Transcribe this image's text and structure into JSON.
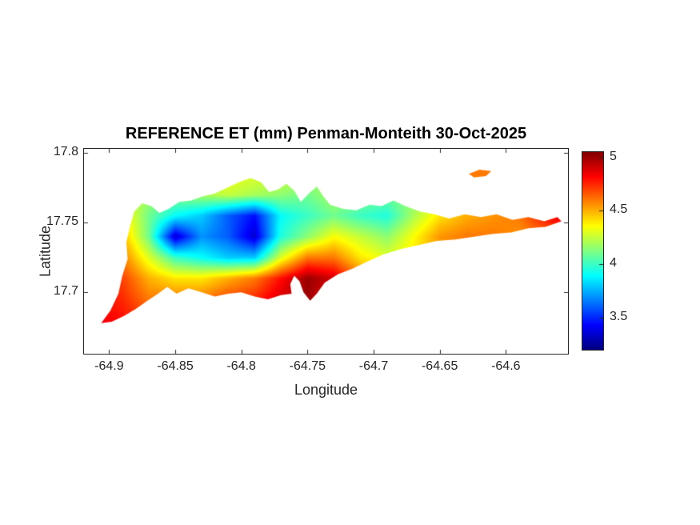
{
  "figure": {
    "background": "#ffffff"
  },
  "chart_data": {
    "type": "heatmap",
    "title": "REFERENCE ET (mm) Penman-Monteith 30-Oct-2025",
    "variable": "REFERENCE ET (mm)",
    "method": "Penman-Monteith",
    "date": "30-Oct-2025",
    "xlabel": "Longitude",
    "ylabel": "Latitude",
    "xlim": [
      -64.919,
      -64.553
    ],
    "ylim": [
      17.656,
      17.803
    ],
    "x_ticks": [
      -64.9,
      -64.85,
      -64.8,
      -64.75,
      -64.7,
      -64.65,
      -64.6
    ],
    "x_tick_labels": [
      "-64.9",
      "-64.85",
      "-64.8",
      "-64.75",
      "-64.7",
      "-64.65",
      "-64.6"
    ],
    "y_ticks": [
      17.7,
      17.75,
      17.8
    ],
    "y_tick_labels": [
      "17.7",
      "17.75",
      "17.8"
    ],
    "grid_on": false,
    "legend": "colorbar-right",
    "colormap": "jet",
    "clim": [
      3.2,
      5.05
    ],
    "colorbar_ticks": [
      3.5,
      4,
      4.5,
      5
    ],
    "colorbar_tick_labels": [
      "3.5",
      "4",
      "4.5",
      "5"
    ],
    "grid": {
      "lon": [
        -64.91,
        -64.89,
        -64.87,
        -64.85,
        -64.83,
        -64.81,
        -64.79,
        -64.77,
        -64.75,
        -64.73,
        -64.71,
        -64.69,
        -64.67,
        -64.65,
        -64.63,
        -64.61,
        -64.59,
        -64.57,
        -64.55
      ],
      "lat_north_to_south": [
        17.785,
        17.77,
        17.755,
        17.74,
        17.725,
        17.71,
        17.695,
        17.68
      ],
      "et_mm": [
        [
          4.3,
          4.2,
          4.2,
          4.3,
          4.3,
          4.35,
          4.3,
          4.3,
          4.2,
          4.2,
          4.2,
          4.1,
          4.2,
          4.3,
          4.6,
          4.6,
          4.5,
          4.6,
          4.7
        ],
        [
          4.3,
          4.25,
          4.2,
          4.15,
          4.2,
          4.25,
          4.2,
          4.15,
          4.1,
          4.2,
          4.15,
          4.1,
          4.15,
          4.3,
          4.5,
          4.55,
          4.6,
          4.7,
          4.8
        ],
        [
          4.5,
          4.4,
          4.1,
          3.9,
          3.8,
          3.6,
          3.45,
          3.9,
          4.0,
          4.1,
          4.0,
          3.95,
          4.2,
          4.4,
          4.5,
          4.55,
          4.6,
          4.8,
          4.9
        ],
        [
          4.6,
          4.5,
          4.1,
          3.35,
          3.7,
          3.6,
          3.35,
          3.95,
          4.15,
          4.35,
          4.25,
          4.15,
          4.35,
          4.55,
          4.6,
          4.6,
          4.55,
          4.6,
          4.7
        ],
        [
          4.7,
          4.6,
          4.3,
          4.0,
          3.9,
          3.8,
          3.8,
          4.3,
          4.6,
          4.6,
          4.4,
          4.3,
          4.4,
          4.5,
          4.5,
          4.5,
          4.5,
          4.5,
          4.6
        ],
        [
          4.8,
          4.7,
          4.5,
          4.4,
          4.4,
          4.5,
          4.6,
          4.8,
          5.0,
          4.9,
          4.6,
          4.5,
          4.5,
          4.5,
          4.5,
          4.5,
          4.5,
          4.5,
          4.5
        ],
        [
          4.8,
          4.75,
          4.6,
          4.6,
          4.6,
          4.7,
          4.75,
          4.9,
          5.0,
          4.8,
          4.6,
          4.5,
          4.45,
          4.45,
          4.45,
          4.45,
          4.4,
          4.4,
          4.4
        ],
        [
          4.85,
          4.8,
          4.7,
          4.65,
          4.65,
          4.7,
          4.75,
          4.85,
          4.9,
          4.7,
          4.6,
          4.5,
          4.45,
          4.4,
          4.4,
          4.4,
          4.4,
          4.4,
          4.4
        ]
      ]
    },
    "island_outline_lonlat": [
      [
        -64.906,
        17.678
      ],
      [
        -64.899,
        17.687
      ],
      [
        -64.893,
        17.699
      ],
      [
        -64.89,
        17.712
      ],
      [
        -64.886,
        17.724
      ],
      [
        -64.887,
        17.736
      ],
      [
        -64.884,
        17.748
      ],
      [
        -64.881,
        17.758
      ],
      [
        -64.875,
        17.764
      ],
      [
        -64.868,
        17.762
      ],
      [
        -64.862,
        17.757
      ],
      [
        -64.855,
        17.76
      ],
      [
        -64.847,
        17.765
      ],
      [
        -64.838,
        17.766
      ],
      [
        -64.829,
        17.769
      ],
      [
        -64.82,
        17.771
      ],
      [
        -64.811,
        17.775
      ],
      [
        -64.802,
        17.779
      ],
      [
        -64.793,
        17.782
      ],
      [
        -64.785,
        17.779
      ],
      [
        -64.779,
        17.772
      ],
      [
        -64.772,
        17.774
      ],
      [
        -64.766,
        17.778
      ],
      [
        -64.76,
        17.773
      ],
      [
        -64.755,
        17.765
      ],
      [
        -64.749,
        17.771
      ],
      [
        -64.743,
        17.776
      ],
      [
        -64.738,
        17.769
      ],
      [
        -64.733,
        17.763
      ],
      [
        -64.723,
        17.76
      ],
      [
        -64.713,
        17.759
      ],
      [
        -64.703,
        17.763
      ],
      [
        -64.694,
        17.762
      ],
      [
        -64.685,
        17.766
      ],
      [
        -64.676,
        17.762
      ],
      [
        -64.665,
        17.758
      ],
      [
        -64.654,
        17.756
      ],
      [
        -64.643,
        17.753
      ],
      [
        -64.631,
        17.756
      ],
      [
        -64.619,
        17.754
      ],
      [
        -64.607,
        17.756
      ],
      [
        -64.595,
        17.752
      ],
      [
        -64.583,
        17.754
      ],
      [
        -64.571,
        17.751
      ],
      [
        -64.561,
        17.754
      ],
      [
        -64.558,
        17.751
      ],
      [
        -64.57,
        17.747
      ],
      [
        -64.583,
        17.746
      ],
      [
        -64.596,
        17.743
      ],
      [
        -64.61,
        17.742
      ],
      [
        -64.624,
        17.74
      ],
      [
        -64.638,
        17.738
      ],
      [
        -64.652,
        17.737
      ],
      [
        -64.666,
        17.734
      ],
      [
        -64.68,
        17.731
      ],
      [
        -64.693,
        17.727
      ],
      [
        -64.705,
        17.722
      ],
      [
        -64.716,
        17.717
      ],
      [
        -64.727,
        17.713
      ],
      [
        -64.737,
        17.707
      ],
      [
        -64.743,
        17.699
      ],
      [
        -64.748,
        17.694
      ],
      [
        -64.753,
        17.7
      ],
      [
        -64.756,
        17.708
      ],
      [
        -64.76,
        17.712
      ],
      [
        -64.763,
        17.706
      ],
      [
        -64.762,
        17.699
      ],
      [
        -64.77,
        17.698
      ],
      [
        -64.78,
        17.695
      ],
      [
        -64.79,
        17.697
      ],
      [
        -64.8,
        17.7
      ],
      [
        -64.81,
        17.699
      ],
      [
        -64.82,
        17.697
      ],
      [
        -64.83,
        17.7
      ],
      [
        -64.84,
        17.703
      ],
      [
        -64.849,
        17.699
      ],
      [
        -64.856,
        17.704
      ],
      [
        -64.863,
        17.699
      ],
      [
        -64.871,
        17.694
      ],
      [
        -64.88,
        17.688
      ],
      [
        -64.889,
        17.683
      ],
      [
        -64.898,
        17.679
      ]
    ],
    "islet_outline_lonlat": [
      [
        -64.628,
        17.785
      ],
      [
        -64.62,
        17.788
      ],
      [
        -64.611,
        17.787
      ],
      [
        -64.615,
        17.7835
      ],
      [
        -64.624,
        17.7825
      ]
    ]
  }
}
